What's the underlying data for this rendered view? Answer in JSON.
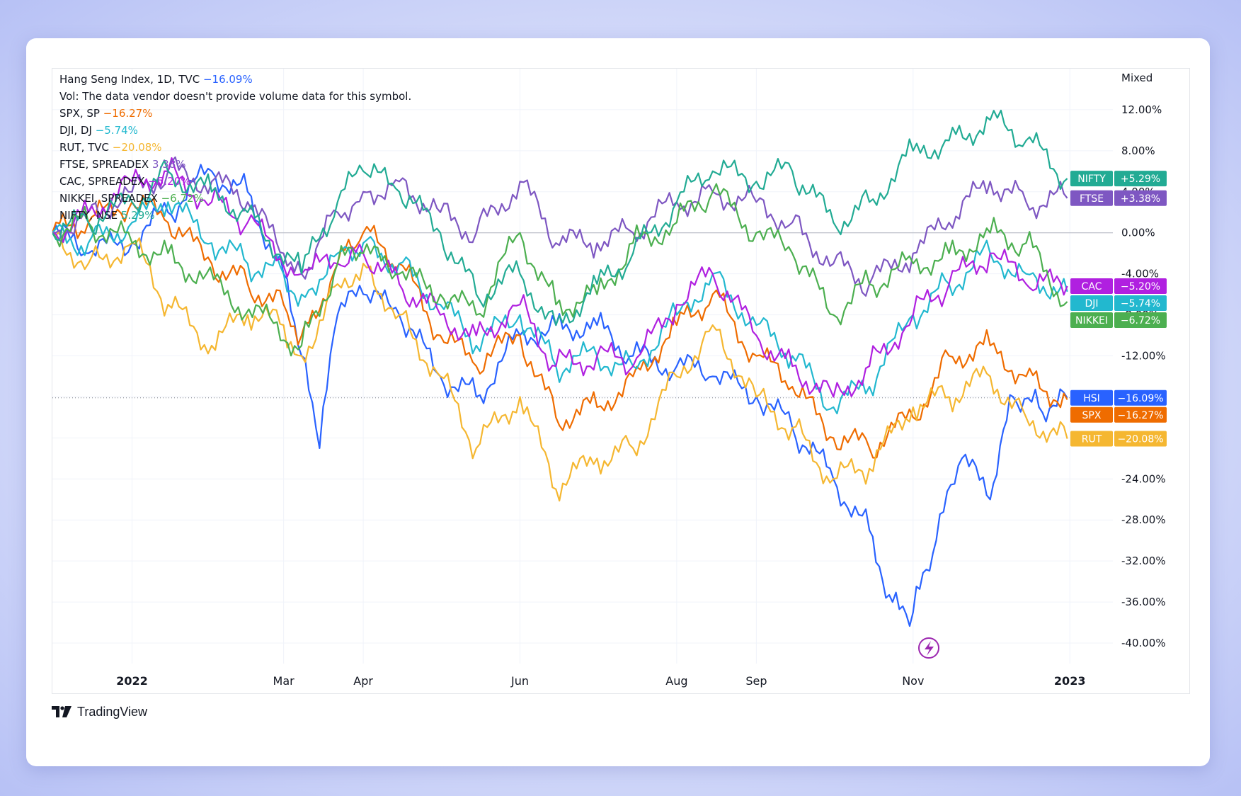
{
  "chart_data": {
    "type": "line",
    "legend": [
      {
        "label": "Hang Seng Index, 1D, TVC",
        "value": "−16.09%",
        "color": "#2962ff"
      },
      {
        "label": "Vol: The data vendor doesn't provide volume data for this symbol.",
        "value": "",
        "color": "#131722"
      },
      {
        "label": "SPX, SP",
        "value": "−16.27%",
        "color": "#ef6c00"
      },
      {
        "label": "DJI, DJ",
        "value": "−5.74%",
        "color": "#22b8cf"
      },
      {
        "label": "RUT, TVC",
        "value": "−20.08%",
        "color": "#f5b731"
      },
      {
        "label": "FTSE, SPREADEX",
        "value": "3.38%",
        "color": "#7e57c2"
      },
      {
        "label": "CAC, SPREADEX",
        "value": "−5.20%",
        "color": "#b020e0"
      },
      {
        "label": "NIKKEI, SPREADEX",
        "value": "−6.72%",
        "color": "#4caf50"
      },
      {
        "label": "NIFTY, NSE",
        "value": "5.29%",
        "color": "#22ab94"
      }
    ],
    "scale_mode": "Mixed",
    "x_ticks": [
      {
        "label": "2022",
        "date": "2022-01-01",
        "bold": true
      },
      {
        "label": "Mar",
        "date": "2022-03-01",
        "bold": false
      },
      {
        "label": "Apr",
        "date": "2022-04-01",
        "bold": false
      },
      {
        "label": "Jun",
        "date": "2022-06-01",
        "bold": false
      },
      {
        "label": "Aug",
        "date": "2022-08-01",
        "bold": false
      },
      {
        "label": "Sep",
        "date": "2022-09-01",
        "bold": false
      },
      {
        "label": "Nov",
        "date": "2022-11-01",
        "bold": false
      },
      {
        "label": "2023",
        "date": "2023-01-01",
        "bold": true
      }
    ],
    "x_range": [
      "2021-12-01",
      "2023-01-15"
    ],
    "y_ticks": [
      "12.00%",
      "8.00%",
      "4.00%",
      "0.00%",
      "-4.00%",
      "-8.00%",
      "-12.00%",
      "-16.00%",
      "-20.00%",
      "-24.00%",
      "-28.00%",
      "-32.00%",
      "-36.00%",
      "-40.00%"
    ],
    "y_tick_values": [
      12,
      8,
      4,
      0,
      -4,
      -8,
      -12,
      -16,
      -20,
      -24,
      -28,
      -32,
      -36,
      -40
    ],
    "ylim": [
      -42,
      16
    ],
    "zero_line": 0,
    "last_value_line": -16.09,
    "series": [
      {
        "name": "HSI",
        "color": "#2962ff",
        "last": "−16.09%",
        "values": [
          [
            "2021-12-01",
            0
          ],
          [
            "2021-12-15",
            -2
          ],
          [
            "2022-01-01",
            -1
          ],
          [
            "2022-01-15",
            2
          ],
          [
            "2022-02-01",
            6
          ],
          [
            "2022-02-15",
            4
          ],
          [
            "2022-03-01",
            -4
          ],
          [
            "2022-03-08",
            -12
          ],
          [
            "2022-03-15",
            -21
          ],
          [
            "2022-03-22",
            -8
          ],
          [
            "2022-04-01",
            -6
          ],
          [
            "2022-04-15",
            -8
          ],
          [
            "2022-05-01",
            -14
          ],
          [
            "2022-05-15",
            -16
          ],
          [
            "2022-06-01",
            -10
          ],
          [
            "2022-06-15",
            -9
          ],
          [
            "2022-07-01",
            -9
          ],
          [
            "2022-07-15",
            -12
          ],
          [
            "2022-08-01",
            -13
          ],
          [
            "2022-08-15",
            -14
          ],
          [
            "2022-09-01",
            -16
          ],
          [
            "2022-09-15",
            -19
          ],
          [
            "2022-10-01",
            -24
          ],
          [
            "2022-10-15",
            -29
          ],
          [
            "2022-10-24",
            -36
          ],
          [
            "2022-11-01",
            -37
          ],
          [
            "2022-11-10",
            -30
          ],
          [
            "2022-11-20",
            -22
          ],
          [
            "2022-12-01",
            -26
          ],
          [
            "2022-12-10",
            -16
          ],
          [
            "2022-12-20",
            -17
          ],
          [
            "2022-12-31",
            -16.09
          ]
        ]
      },
      {
        "name": "SPX",
        "color": "#ef6c00",
        "last": "−16.27%",
        "values": [
          [
            "2021-12-01",
            0
          ],
          [
            "2021-12-15",
            1
          ],
          [
            "2022-01-01",
            3
          ],
          [
            "2022-01-15",
            1
          ],
          [
            "2022-02-01",
            -3
          ],
          [
            "2022-02-15",
            -5
          ],
          [
            "2022-03-01",
            -7
          ],
          [
            "2022-03-08",
            -10
          ],
          [
            "2022-03-22",
            -3
          ],
          [
            "2022-04-01",
            0
          ],
          [
            "2022-04-15",
            -3
          ],
          [
            "2022-05-01",
            -10
          ],
          [
            "2022-05-15",
            -13
          ],
          [
            "2022-06-01",
            -10
          ],
          [
            "2022-06-15",
            -18
          ],
          [
            "2022-07-01",
            -17
          ],
          [
            "2022-07-15",
            -14
          ],
          [
            "2022-08-01",
            -9
          ],
          [
            "2022-08-15",
            -6
          ],
          [
            "2022-09-01",
            -12
          ],
          [
            "2022-09-15",
            -15
          ],
          [
            "2022-10-01",
            -20
          ],
          [
            "2022-10-15",
            -21
          ],
          [
            "2022-11-01",
            -18
          ],
          [
            "2022-11-15",
            -12
          ],
          [
            "2022-12-01",
            -11
          ],
          [
            "2022-12-15",
            -14
          ],
          [
            "2022-12-31",
            -16.27
          ]
        ]
      },
      {
        "name": "DJI",
        "color": "#22b8cf",
        "last": "−5.74%",
        "values": [
          [
            "2021-12-01",
            0
          ],
          [
            "2021-12-15",
            -1
          ],
          [
            "2022-01-01",
            1
          ],
          [
            "2022-01-15",
            3
          ],
          [
            "2022-02-01",
            -1
          ],
          [
            "2022-02-15",
            -3
          ],
          [
            "2022-03-01",
            -4
          ],
          [
            "2022-03-08",
            -6
          ],
          [
            "2022-03-22",
            -2
          ],
          [
            "2022-04-01",
            -1
          ],
          [
            "2022-04-15",
            -3
          ],
          [
            "2022-05-01",
            -7
          ],
          [
            "2022-05-15",
            -11
          ],
          [
            "2022-06-01",
            -8
          ],
          [
            "2022-06-15",
            -13
          ],
          [
            "2022-07-01",
            -12
          ],
          [
            "2022-07-15",
            -13
          ],
          [
            "2022-08-01",
            -8
          ],
          [
            "2022-08-15",
            -4
          ],
          [
            "2022-09-01",
            -9
          ],
          [
            "2022-09-15",
            -12
          ],
          [
            "2022-10-01",
            -17
          ],
          [
            "2022-10-15",
            -15
          ],
          [
            "2022-11-01",
            -8
          ],
          [
            "2022-11-15",
            -5
          ],
          [
            "2022-12-01",
            -2
          ],
          [
            "2022-12-15",
            -4
          ],
          [
            "2022-12-31",
            -5.74
          ]
        ]
      },
      {
        "name": "RUT",
        "color": "#f5b731",
        "last": "−20.08%",
        "values": [
          [
            "2021-12-01",
            0
          ],
          [
            "2021-12-15",
            -3
          ],
          [
            "2022-01-01",
            -1
          ],
          [
            "2022-01-15",
            -7
          ],
          [
            "2022-02-01",
            -11
          ],
          [
            "2022-02-15",
            -8
          ],
          [
            "2022-03-01",
            -9
          ],
          [
            "2022-03-08",
            -12
          ],
          [
            "2022-03-22",
            -5
          ],
          [
            "2022-04-01",
            -3
          ],
          [
            "2022-04-15",
            -8
          ],
          [
            "2022-05-01",
            -14
          ],
          [
            "2022-05-15",
            -21
          ],
          [
            "2022-06-01",
            -16
          ],
          [
            "2022-06-15",
            -25
          ],
          [
            "2022-07-01",
            -22
          ],
          [
            "2022-07-15",
            -21
          ],
          [
            "2022-08-01",
            -14
          ],
          [
            "2022-08-15",
            -9
          ],
          [
            "2022-09-01",
            -16
          ],
          [
            "2022-09-15",
            -19
          ],
          [
            "2022-10-01",
            -24
          ],
          [
            "2022-10-15",
            -23
          ],
          [
            "2022-11-01",
            -17
          ],
          [
            "2022-11-15",
            -16
          ],
          [
            "2022-12-01",
            -14
          ],
          [
            "2022-12-15",
            -18
          ],
          [
            "2022-12-31",
            -20.08
          ]
        ]
      },
      {
        "name": "FTSE",
        "color": "#7e57c2",
        "last": "+3.38%",
        "values": [
          [
            "2021-12-01",
            0
          ],
          [
            "2021-12-15",
            2
          ],
          [
            "2022-01-01",
            4
          ],
          [
            "2022-01-15",
            6
          ],
          [
            "2022-02-01",
            5
          ],
          [
            "2022-02-15",
            3
          ],
          [
            "2022-03-01",
            -2
          ],
          [
            "2022-03-08",
            -4
          ],
          [
            "2022-03-22",
            2
          ],
          [
            "2022-04-01",
            4
          ],
          [
            "2022-04-15",
            5
          ],
          [
            "2022-05-01",
            2
          ],
          [
            "2022-05-15",
            0
          ],
          [
            "2022-06-01",
            5
          ],
          [
            "2022-06-15",
            -1
          ],
          [
            "2022-07-01",
            -1
          ],
          [
            "2022-07-15",
            0
          ],
          [
            "2022-08-01",
            3
          ],
          [
            "2022-08-15",
            4
          ],
          [
            "2022-09-01",
            3
          ],
          [
            "2022-09-15",
            1
          ],
          [
            "2022-10-01",
            -3
          ],
          [
            "2022-10-15",
            -5
          ],
          [
            "2022-11-01",
            -2
          ],
          [
            "2022-11-15",
            1
          ],
          [
            "2022-12-01",
            5
          ],
          [
            "2022-12-15",
            3
          ],
          [
            "2022-12-31",
            3.38
          ]
        ]
      },
      {
        "name": "CAC",
        "color": "#b020e0",
        "last": "−5.20%",
        "values": [
          [
            "2021-12-01",
            0
          ],
          [
            "2021-12-15",
            2
          ],
          [
            "2022-01-01",
            5
          ],
          [
            "2022-01-15",
            6
          ],
          [
            "2022-02-01",
            3
          ],
          [
            "2022-02-15",
            1
          ],
          [
            "2022-03-08",
            -4
          ],
          [
            "2022-03-22",
            -3
          ],
          [
            "2022-04-01",
            -2
          ],
          [
            "2022-04-15",
            -5
          ],
          [
            "2022-05-01",
            -8
          ],
          [
            "2022-05-15",
            -10
          ],
          [
            "2022-06-01",
            -7
          ],
          [
            "2022-06-15",
            -13
          ],
          [
            "2022-07-01",
            -12
          ],
          [
            "2022-07-15",
            -13
          ],
          [
            "2022-08-01",
            -7
          ],
          [
            "2022-08-15",
            -4
          ],
          [
            "2022-09-01",
            -10
          ],
          [
            "2022-09-15",
            -13
          ],
          [
            "2022-10-01",
            -16
          ],
          [
            "2022-10-15",
            -13
          ],
          [
            "2022-11-01",
            -8
          ],
          [
            "2022-11-15",
            -5
          ],
          [
            "2022-12-01",
            -2
          ],
          [
            "2022-12-15",
            -5
          ],
          [
            "2022-12-31",
            -5.2
          ]
        ]
      },
      {
        "name": "NIKKEI",
        "color": "#4caf50",
        "last": "−6.72%",
        "values": [
          [
            "2021-12-01",
            0
          ],
          [
            "2021-12-15",
            1
          ],
          [
            "2022-01-01",
            -1
          ],
          [
            "2022-01-15",
            -2
          ],
          [
            "2022-03-08",
            -11
          ],
          [
            "2022-03-22",
            -3
          ],
          [
            "2022-04-01",
            -2
          ],
          [
            "2022-04-15",
            -4
          ],
          [
            "2022-05-01",
            -6
          ],
          [
            "2022-05-15",
            -8
          ],
          [
            "2022-06-01",
            0
          ],
          [
            "2022-06-15",
            -7
          ],
          [
            "2022-07-01",
            -6
          ],
          [
            "2022-07-15",
            -1
          ],
          [
            "2022-08-01",
            1
          ],
          [
            "2022-08-15",
            4
          ],
          [
            "2022-09-01",
            0
          ],
          [
            "2022-09-15",
            -2
          ],
          [
            "2022-10-01",
            -8
          ],
          [
            "2022-10-15",
            -5
          ],
          [
            "2022-11-01",
            -3
          ],
          [
            "2022-11-15",
            -2
          ],
          [
            "2022-12-01",
            0
          ],
          [
            "2022-12-15",
            -1
          ],
          [
            "2022-12-31",
            -6.72
          ]
        ]
      },
      {
        "name": "NIFTY",
        "color": "#22ab94",
        "last": "+5.29%",
        "values": [
          [
            "2021-12-01",
            0
          ],
          [
            "2021-12-15",
            1
          ],
          [
            "2022-01-01",
            3
          ],
          [
            "2022-01-15",
            6
          ],
          [
            "2022-02-01",
            4
          ],
          [
            "2022-02-15",
            2
          ],
          [
            "2022-03-08",
            -4
          ],
          [
            "2022-03-22",
            3
          ],
          [
            "2022-04-01",
            6
          ],
          [
            "2022-04-15",
            4
          ],
          [
            "2022-05-01",
            0
          ],
          [
            "2022-05-15",
            -6
          ],
          [
            "2022-06-01",
            -4
          ],
          [
            "2022-06-15",
            -9
          ],
          [
            "2022-07-01",
            -5
          ],
          [
            "2022-07-15",
            -2
          ],
          [
            "2022-08-01",
            3
          ],
          [
            "2022-08-15",
            6
          ],
          [
            "2022-09-01",
            5
          ],
          [
            "2022-09-15",
            6
          ],
          [
            "2022-10-01",
            1
          ],
          [
            "2022-10-15",
            3
          ],
          [
            "2022-11-01",
            8
          ],
          [
            "2022-11-15",
            9
          ],
          [
            "2022-12-01",
            11
          ],
          [
            "2022-12-15",
            9
          ],
          [
            "2022-12-31",
            5.29
          ]
        ]
      }
    ],
    "price_labels_order": [
      "NIFTY",
      "FTSE",
      "CAC",
      "DJI",
      "NIKKEI",
      "HSI",
      "SPX",
      "RUT"
    ]
  },
  "footer": {
    "brand": "TradingView"
  }
}
